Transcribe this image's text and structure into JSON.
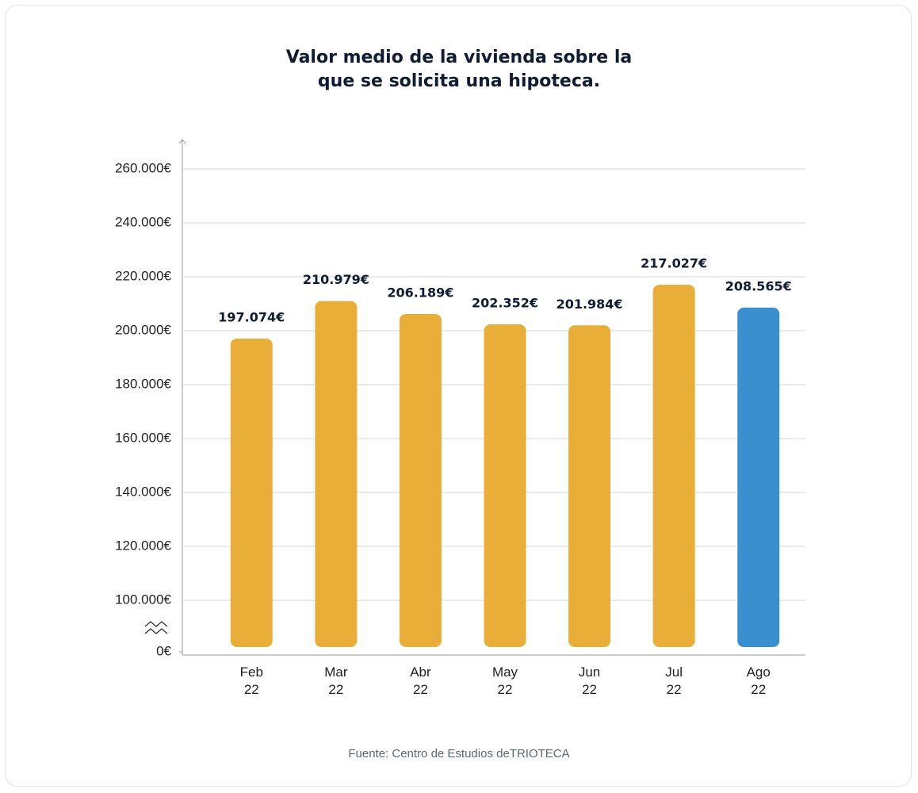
{
  "chart_data": {
    "type": "bar",
    "title": "Valor medio de la vivienda sobre la que se solicita una hipoteca.",
    "source": "Fuente: Centro de Estudios deTRIOTECA",
    "categories": [
      "Feb 22",
      "Mar 22",
      "Abr 22",
      "May 22",
      "Jun 22",
      "Jul 22",
      "Ago 22"
    ],
    "values": [
      197074,
      210979,
      206189,
      202352,
      201984,
      217027,
      208565
    ],
    "value_labels": [
      "197.074€",
      "210.979€",
      "206.189€",
      "202.352€",
      "201.984€",
      "217.027€",
      "208.565€"
    ],
    "colors": [
      "#e8ae37",
      "#e8ae37",
      "#e8ae37",
      "#e8ae37",
      "#e8ae37",
      "#e8ae37",
      "#3a8fcf"
    ],
    "ylim": [
      0,
      260000
    ],
    "yticks": [
      {
        "value": 0,
        "label": "0€"
      },
      {
        "value": 100000,
        "label": "100.000€"
      },
      {
        "value": 120000,
        "label": "120.000€"
      },
      {
        "value": 140000,
        "label": "140.000€"
      },
      {
        "value": 160000,
        "label": "160.000€"
      },
      {
        "value": 180000,
        "label": "180.000€"
      },
      {
        "value": 200000,
        "label": "200.000€"
      },
      {
        "value": 220000,
        "label": "220.000€"
      },
      {
        "value": 240000,
        "label": "240.000€"
      },
      {
        "value": 260000,
        "label": "260.000€"
      }
    ],
    "axis_break": true,
    "grid": true
  }
}
